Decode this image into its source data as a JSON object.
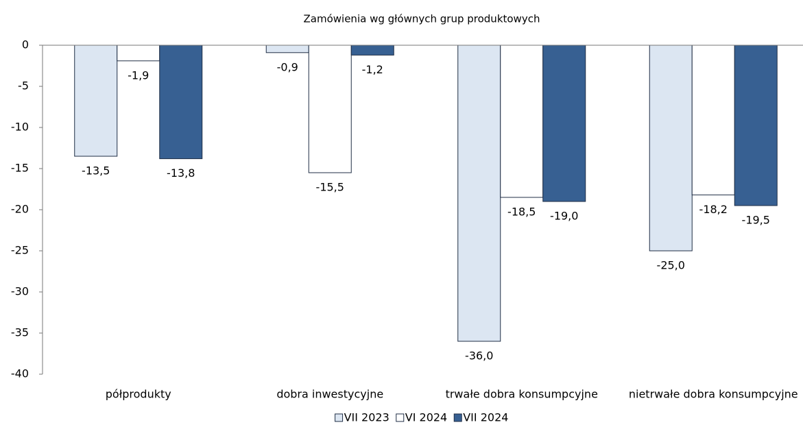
{
  "chart_data": {
    "type": "bar",
    "title": "Zamówienia wg głównych grup produktowych",
    "categories": [
      "półprodukty",
      "dobra inwestycyjne",
      "trwałe dobra konsumpcyjne",
      "nietrwałe dobra konsumpcyjne"
    ],
    "series": [
      {
        "name": "VII 2023",
        "color": "#dce6f2",
        "stroke": "#1f2d44",
        "values": [
          -13.5,
          -0.9,
          -36.0,
          -25.0
        ],
        "value_labels": [
          "-13,5",
          "-0,9",
          "-36,0",
          "-25,0"
        ]
      },
      {
        "name": "VI 2024",
        "color": "#ffffff",
        "stroke": "#1f2d44",
        "values": [
          -1.9,
          -15.5,
          -18.5,
          -18.2
        ],
        "value_labels": [
          "-1,9",
          "-15,5",
          "-18,5",
          "-18,2"
        ]
      },
      {
        "name": "VII 2024",
        "color": "#376092",
        "stroke": "#1f2d44",
        "values": [
          -13.8,
          -1.2,
          -19.0,
          -19.5
        ],
        "value_labels": [
          "-13,8",
          "-1,2",
          "-19,0",
          "-19,5"
        ]
      }
    ],
    "ylim": [
      -40,
      0
    ],
    "yticks": [
      0,
      -5,
      -10,
      -15,
      -20,
      -25,
      -30,
      -35,
      -40
    ],
    "legend": "bottom"
  }
}
